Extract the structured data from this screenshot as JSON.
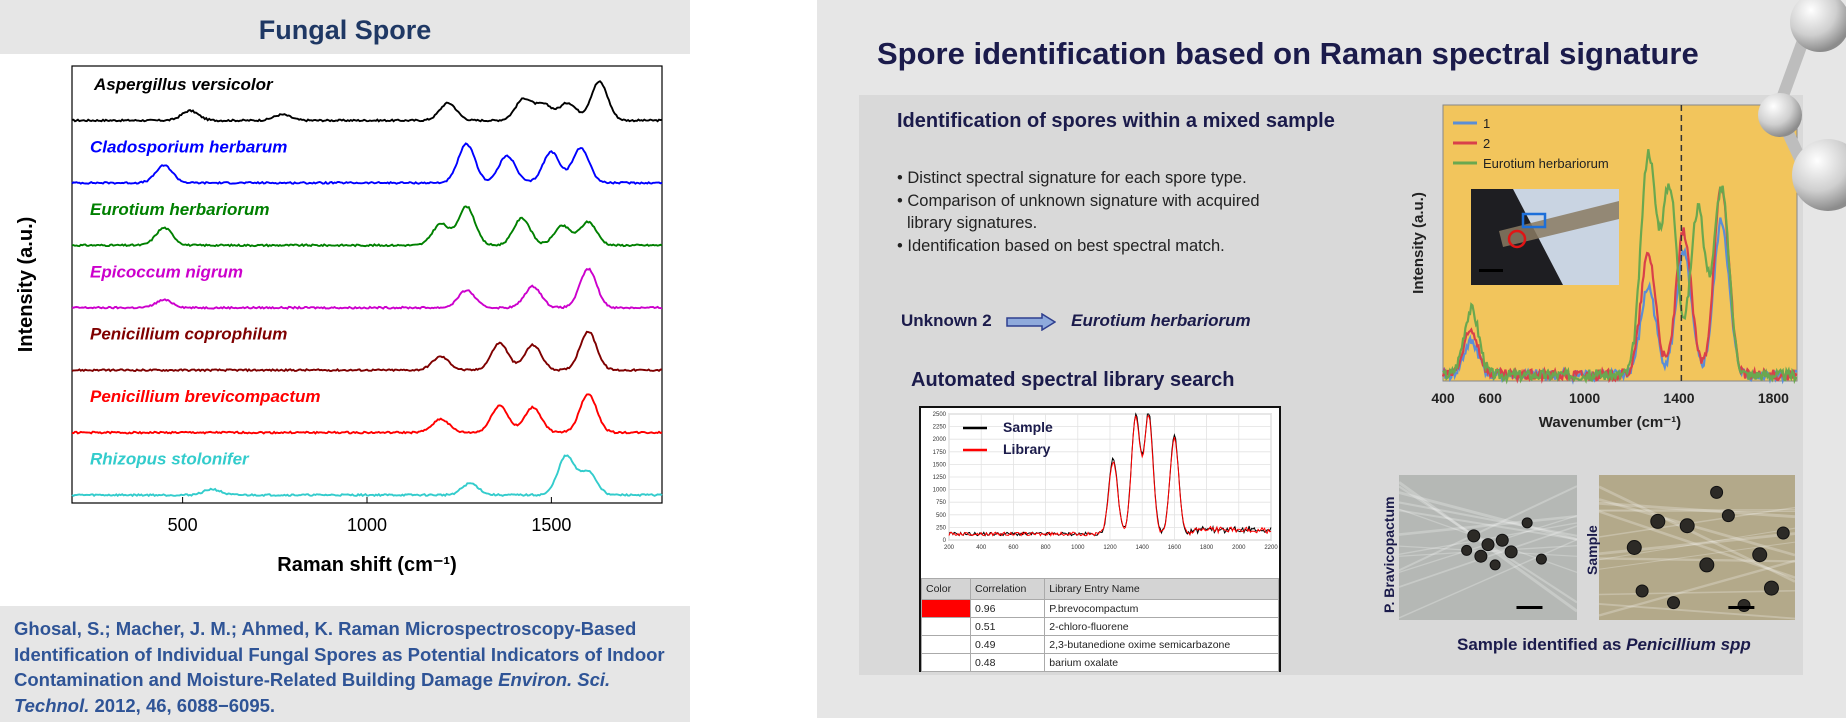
{
  "left_panel": {
    "title": "Fungal Spore",
    "citation": {
      "authors_text": "Ghosal, S.; Macher, J. M.; Ahmed, K. Raman Microspectroscopy-Based Identification of Individual  Fungal Spores as Potential Indicators of Indoor Contamination and Moisture-Related Building Damage ",
      "journal": "Environ. Sci. Technol.",
      "details": " 2012, 46, 6088−6095."
    }
  },
  "slide": {
    "title": "Spore identification based on Raman spectral signature",
    "subhead": "Identification of spores within a mixed sample",
    "bullets": [
      "• Distinct spectral signature for each spore type.",
      "• Comparison of unknown  signature with acquired library signatures.",
      "• Identification  based on best spectral match."
    ],
    "unknown_label": "Unknown 2",
    "unknown_result": "Eurotium herbariorum",
    "auto_title": "Automated spectral library search",
    "micro_labels": [
      "P. Bravicopactum",
      "Sample"
    ],
    "caption_prefix": "Sample  identified as ",
    "caption_species": "Penicillium  spp",
    "colors": {
      "accent": "#1b1b4b",
      "red": "#ff0000"
    }
  },
  "library_search": {
    "table_headers": [
      "Color",
      "Correlation",
      "Library Entry Name"
    ],
    "rows": [
      {
        "correlation": "0.96",
        "name": "P.brevocompactum",
        "color": "#ff0000"
      },
      {
        "correlation": "0.51",
        "name": "2-chloro-fluorene",
        "color": ""
      },
      {
        "correlation": "0.49",
        "name": "2,3-butanedione oxime semicarbazone",
        "color": ""
      },
      {
        "correlation": "0.48",
        "name": "barium oxalate",
        "color": ""
      }
    ]
  },
  "chart_data": [
    {
      "type": "line",
      "title": "",
      "xlabel": "Raman shift (cm⁻¹)",
      "ylabel": "Intensity (a.u.)",
      "xlim": [
        200,
        1800
      ],
      "xticks": [
        500,
        1000,
        1500
      ],
      "grid": false,
      "series": [
        {
          "name": "Aspergillus versicolor",
          "color": "#000000",
          "peaks": [
            [
              520,
              0.25
            ],
            [
              770,
              0.15
            ],
            [
              1220,
              0.45
            ],
            [
              1425,
              0.55
            ],
            [
              1480,
              0.4
            ],
            [
              1545,
              0.45
            ],
            [
              1630,
              1.0
            ]
          ]
        },
        {
          "name": "Cladosporium herbarum",
          "color": "#0000ff",
          "peaks": [
            [
              450,
              0.45
            ],
            [
              1270,
              1.0
            ],
            [
              1380,
              0.7
            ],
            [
              1500,
              0.8
            ],
            [
              1580,
              0.9
            ]
          ]
        },
        {
          "name": "Eurotium herbariorum",
          "color": "#008000",
          "peaks": [
            [
              450,
              0.45
            ],
            [
              1200,
              0.55
            ],
            [
              1270,
              1.0
            ],
            [
              1420,
              0.7
            ],
            [
              1530,
              0.5
            ],
            [
              1600,
              0.6
            ]
          ]
        },
        {
          "name": "Epicoccum nigrum",
          "color": "#cc00cc",
          "peaks": [
            [
              450,
              0.2
            ],
            [
              1270,
              0.45
            ],
            [
              1450,
              0.55
            ],
            [
              1600,
              1.0
            ]
          ]
        },
        {
          "name": "Penicillium coprophilum",
          "color": "#7f0000",
          "peaks": [
            [
              1200,
              0.35
            ],
            [
              1360,
              0.7
            ],
            [
              1450,
              0.65
            ],
            [
              1600,
              1.0
            ]
          ]
        },
        {
          "name": "Penicillium brevicompactum",
          "color": "#ff0000",
          "peaks": [
            [
              1200,
              0.35
            ],
            [
              1360,
              0.7
            ],
            [
              1450,
              0.65
            ],
            [
              1600,
              1.0
            ]
          ]
        },
        {
          "name": "Rhizopus stolonifer",
          "color": "#33cccc",
          "peaks": [
            [
              580,
              0.15
            ],
            [
              1280,
              0.3
            ],
            [
              1540,
              1.0
            ],
            [
              1600,
              0.6
            ]
          ]
        }
      ]
    },
    {
      "type": "line",
      "title": "",
      "xlabel": "Wavenumber (cm⁻¹)",
      "ylabel": "Intensity (a.u.)",
      "xlim": [
        400,
        1900
      ],
      "xticks": [
        400,
        600,
        1000,
        1400,
        1800
      ],
      "vline": 1410,
      "legend": "top-left",
      "series": [
        {
          "name": "1",
          "color": "#5b8ed6",
          "peaks": [
            [
              520,
              0.15
            ],
            [
              1270,
              0.4
            ],
            [
              1420,
              0.55
            ],
            [
              1580,
              0.7
            ]
          ]
        },
        {
          "name": "2",
          "color": "#d9404a",
          "peaks": [
            [
              520,
              0.2
            ],
            [
              1270,
              0.55
            ],
            [
              1420,
              0.65
            ],
            [
              1580,
              0.85
            ]
          ]
        },
        {
          "name": "Eurotium herbariorum",
          "color": "#6aa84f",
          "peaks": [
            [
              520,
              0.3
            ],
            [
              1270,
              1.0
            ],
            [
              1360,
              0.85
            ],
            [
              1480,
              0.75
            ],
            [
              1580,
              0.85
            ]
          ]
        }
      ]
    },
    {
      "type": "line",
      "title": "",
      "xlim": [
        200,
        2200
      ],
      "ylim": [
        0,
        2500
      ],
      "xticks": [
        200,
        400,
        600,
        800,
        1000,
        1200,
        1400,
        1600,
        1800,
        2000,
        2200
      ],
      "yticks": [
        0,
        250,
        500,
        750,
        1000,
        1250,
        1500,
        1750,
        2000,
        2250,
        2500
      ],
      "legend": "top-left",
      "series": [
        {
          "name": "Sample",
          "color": "#000000",
          "peaks": [
            [
              1220,
              1500
            ],
            [
              1360,
              2350
            ],
            [
              1440,
              2400
            ],
            [
              1600,
              1950
            ]
          ]
        },
        {
          "name": "Library",
          "color": "#ff0000",
          "peaks": [
            [
              1220,
              1450
            ],
            [
              1360,
              2300
            ],
            [
              1440,
              2350
            ],
            [
              1600,
              1900
            ]
          ]
        }
      ]
    }
  ]
}
